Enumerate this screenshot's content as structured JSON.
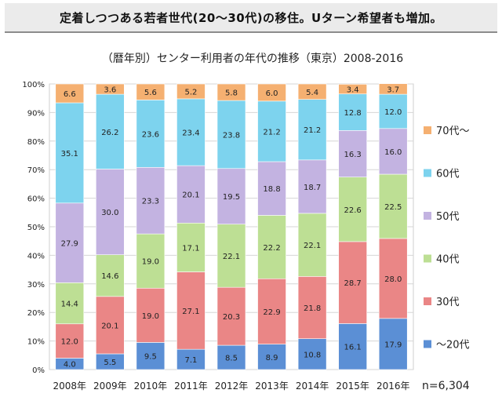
{
  "headline": "定着しつつある若者世代(20〜30代)の移住。Uターン希望者も増加。",
  "chart_data": {
    "type": "bar",
    "stacked": true,
    "percent": true,
    "title": "（暦年別）センター利用者の年代の推移（東京）2008-2016",
    "categories": [
      "2008年",
      "2009年",
      "2010年",
      "2011年",
      "2012年",
      "2013年",
      "2014年",
      "2015年",
      "2016年"
    ],
    "y_ticks": [
      "0%",
      "10%",
      "20%",
      "30%",
      "40%",
      "50%",
      "60%",
      "70%",
      "80%",
      "90%",
      "100%"
    ],
    "ylim": [
      0,
      100
    ],
    "grid": true,
    "legend_position": "right",
    "note": "n=6,304",
    "series": [
      {
        "name": "〜20代",
        "color": "#5b8fd5",
        "values": [
          4.0,
          5.5,
          9.5,
          7.1,
          8.5,
          8.9,
          10.8,
          16.1,
          17.9
        ]
      },
      {
        "name": "30代",
        "color": "#ea8686",
        "values": [
          12.0,
          20.1,
          19.0,
          27.1,
          20.3,
          22.9,
          21.8,
          28.7,
          28.0
        ]
      },
      {
        "name": "40代",
        "color": "#bddf94",
        "values": [
          14.4,
          14.6,
          19.0,
          17.1,
          22.1,
          22.2,
          22.1,
          22.6,
          22.5
        ]
      },
      {
        "name": "50代",
        "color": "#c3b3e1",
        "values": [
          27.9,
          30.0,
          23.3,
          20.1,
          19.5,
          18.8,
          18.7,
          16.3,
          16.0
        ]
      },
      {
        "name": "60代",
        "color": "#7dd3ee",
        "values": [
          35.1,
          26.2,
          23.6,
          23.4,
          23.8,
          21.2,
          21.2,
          12.8,
          12.0
        ]
      },
      {
        "name": "70代〜",
        "color": "#f5b071",
        "values": [
          6.6,
          3.6,
          5.6,
          5.2,
          5.8,
          6.0,
          5.4,
          3.4,
          3.7
        ]
      }
    ]
  }
}
